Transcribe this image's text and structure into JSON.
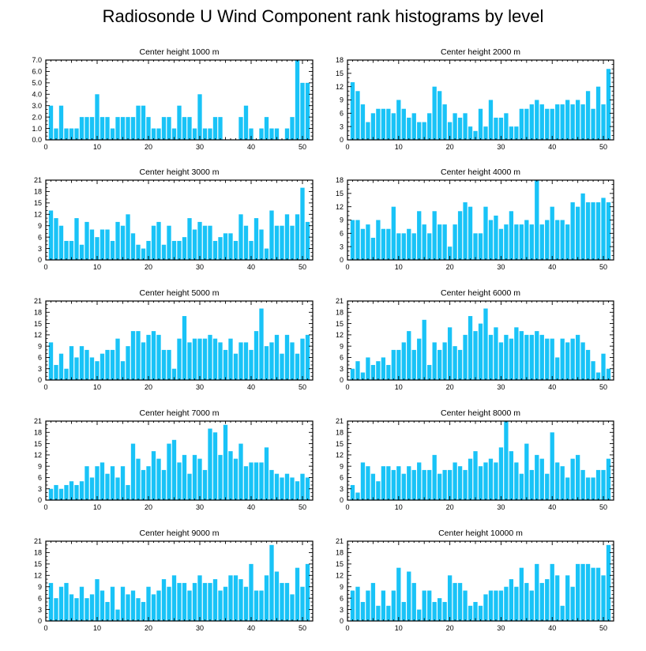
{
  "title": "Radiosonde U Wind Component rank histograms by level",
  "bar_color": "#19c3f7",
  "chart_data": [
    {
      "type": "bar",
      "title": "Center height 1000 m",
      "ylim": [
        0,
        7
      ],
      "yticks": [
        0,
        1,
        2,
        3,
        4,
        5,
        6,
        7
      ],
      "ytick_labels": [
        "0.0",
        "1.0",
        "2.0",
        "3.0",
        "4.0",
        "5.0",
        "6.0",
        "7.0"
      ],
      "xlim": [
        0,
        52
      ],
      "xticks": [
        0,
        10,
        20,
        30,
        40,
        50
      ],
      "x": [
        1,
        2,
        3,
        4,
        5,
        6,
        7,
        8,
        9,
        10,
        11,
        12,
        13,
        14,
        15,
        16,
        17,
        18,
        19,
        20,
        21,
        22,
        23,
        24,
        25,
        26,
        27,
        28,
        29,
        30,
        31,
        32,
        33,
        34,
        35,
        36,
        37,
        38,
        39,
        40,
        41,
        42,
        43,
        44,
        45,
        46,
        47,
        48,
        49,
        50,
        51
      ],
      "values": [
        3,
        1,
        3,
        1,
        1,
        1,
        2,
        2,
        2,
        4,
        2,
        2,
        1,
        2,
        2,
        2,
        2,
        3,
        3,
        2,
        1,
        1,
        2,
        2,
        1,
        3,
        2,
        2,
        1,
        4,
        1,
        1,
        2,
        2,
        0,
        0,
        0,
        2,
        3,
        1,
        0,
        1,
        2,
        1,
        1,
        0,
        1,
        2,
        7,
        5,
        5
      ]
    },
    {
      "type": "bar",
      "title": "Center height 2000 m",
      "ylim": [
        0,
        18
      ],
      "yticks": [
        0,
        3,
        6,
        9,
        12,
        15,
        18
      ],
      "ytick_labels": [
        "0",
        "3",
        "6",
        "9",
        "12",
        "15",
        "18"
      ],
      "xlim": [
        0,
        52
      ],
      "xticks": [
        0,
        10,
        20,
        30,
        40,
        50
      ],
      "x": [
        1,
        2,
        3,
        4,
        5,
        6,
        7,
        8,
        9,
        10,
        11,
        12,
        13,
        14,
        15,
        16,
        17,
        18,
        19,
        20,
        21,
        22,
        23,
        24,
        25,
        26,
        27,
        28,
        29,
        30,
        31,
        32,
        33,
        34,
        35,
        36,
        37,
        38,
        39,
        40,
        41,
        42,
        43,
        44,
        45,
        46,
        47,
        48,
        49,
        50,
        51
      ],
      "values": [
        13,
        11,
        8,
        4,
        6,
        7,
        7,
        7,
        6,
        9,
        7,
        5,
        6,
        4,
        4,
        6,
        12,
        11,
        8,
        4,
        6,
        5,
        6,
        3,
        2,
        7,
        3,
        9,
        5,
        5,
        6,
        3,
        3,
        7,
        7,
        8,
        9,
        8,
        7,
        7,
        8,
        8,
        9,
        8,
        9,
        8,
        11,
        7,
        12,
        8,
        16
      ]
    },
    {
      "type": "bar",
      "title": "Center height 3000 m",
      "ylim": [
        0,
        21
      ],
      "yticks": [
        0,
        3,
        6,
        9,
        12,
        15,
        18,
        21
      ],
      "ytick_labels": [
        "0",
        "3",
        "6",
        "9",
        "12",
        "15",
        "18",
        "21"
      ],
      "xlim": [
        0,
        52
      ],
      "xticks": [
        0,
        10,
        20,
        30,
        40,
        50
      ],
      "x": [
        1,
        2,
        3,
        4,
        5,
        6,
        7,
        8,
        9,
        10,
        11,
        12,
        13,
        14,
        15,
        16,
        17,
        18,
        19,
        20,
        21,
        22,
        23,
        24,
        25,
        26,
        27,
        28,
        29,
        30,
        31,
        32,
        33,
        34,
        35,
        36,
        37,
        38,
        39,
        40,
        41,
        42,
        43,
        44,
        45,
        46,
        47,
        48,
        49,
        50,
        51
      ],
      "values": [
        13,
        11,
        9,
        5,
        5,
        11,
        4,
        10,
        8,
        6,
        8,
        8,
        5,
        10,
        9,
        12,
        7,
        4,
        3,
        5,
        9,
        10,
        4,
        9,
        5,
        5,
        6,
        11,
        8,
        10,
        9,
        9,
        5,
        6,
        7,
        7,
        5,
        12,
        9,
        5,
        11,
        8,
        3,
        13,
        9,
        9,
        12,
        9,
        12,
        19,
        10
      ]
    },
    {
      "type": "bar",
      "title": "Center height 4000 m",
      "ylim": [
        0,
        18
      ],
      "yticks": [
        0,
        3,
        6,
        9,
        12,
        15,
        18
      ],
      "ytick_labels": [
        "0",
        "3",
        "6",
        "9",
        "12",
        "15",
        "18"
      ],
      "xlim": [
        0,
        52
      ],
      "xticks": [
        0,
        10,
        20,
        30,
        40,
        50
      ],
      "x": [
        1,
        2,
        3,
        4,
        5,
        6,
        7,
        8,
        9,
        10,
        11,
        12,
        13,
        14,
        15,
        16,
        17,
        18,
        19,
        20,
        21,
        22,
        23,
        24,
        25,
        26,
        27,
        28,
        29,
        30,
        31,
        32,
        33,
        34,
        35,
        36,
        37,
        38,
        39,
        40,
        41,
        42,
        43,
        44,
        45,
        46,
        47,
        48,
        49,
        50,
        51
      ],
      "values": [
        9,
        9,
        7,
        8,
        5,
        9,
        7,
        7,
        12,
        6,
        6,
        7,
        6,
        11,
        8,
        6,
        11,
        8,
        8,
        3,
        8,
        11,
        13,
        12,
        6,
        6,
        12,
        9,
        10,
        7,
        8,
        11,
        8,
        8,
        9,
        8,
        18,
        8,
        9,
        12,
        9,
        9,
        8,
        13,
        12,
        15,
        13,
        13,
        13,
        14,
        13
      ]
    },
    {
      "type": "bar",
      "title": "Center height 5000 m",
      "ylim": [
        0,
        21
      ],
      "yticks": [
        0,
        3,
        6,
        9,
        12,
        15,
        18,
        21
      ],
      "ytick_labels": [
        "0",
        "3",
        "6",
        "9",
        "12",
        "15",
        "18",
        "21"
      ],
      "xlim": [
        0,
        52
      ],
      "xticks": [
        0,
        10,
        20,
        30,
        40,
        50
      ],
      "x": [
        1,
        2,
        3,
        4,
        5,
        6,
        7,
        8,
        9,
        10,
        11,
        12,
        13,
        14,
        15,
        16,
        17,
        18,
        19,
        20,
        21,
        22,
        23,
        24,
        25,
        26,
        27,
        28,
        29,
        30,
        31,
        32,
        33,
        34,
        35,
        36,
        37,
        38,
        39,
        40,
        41,
        42,
        43,
        44,
        45,
        46,
        47,
        48,
        49,
        50,
        51
      ],
      "values": [
        10,
        4,
        7,
        3,
        9,
        6,
        9,
        8,
        6,
        5,
        7,
        8,
        8,
        11,
        5,
        9,
        13,
        13,
        10,
        12,
        13,
        12,
        8,
        8,
        3,
        11,
        17,
        10,
        11,
        11,
        11,
        12,
        11,
        10,
        8,
        11,
        7,
        10,
        10,
        8,
        13,
        19,
        9,
        10,
        12,
        7,
        12,
        10,
        7,
        11,
        12
      ]
    },
    {
      "type": "bar",
      "title": "Center height 6000 m",
      "ylim": [
        0,
        21
      ],
      "yticks": [
        0,
        3,
        6,
        9,
        12,
        15,
        18,
        21
      ],
      "ytick_labels": [
        "0",
        "3",
        "6",
        "9",
        "12",
        "15",
        "18",
        "21"
      ],
      "xlim": [
        0,
        52
      ],
      "xticks": [
        0,
        10,
        20,
        30,
        40,
        50
      ],
      "x": [
        1,
        2,
        3,
        4,
        5,
        6,
        7,
        8,
        9,
        10,
        11,
        12,
        13,
        14,
        15,
        16,
        17,
        18,
        19,
        20,
        21,
        22,
        23,
        24,
        25,
        26,
        27,
        28,
        29,
        30,
        31,
        32,
        33,
        34,
        35,
        36,
        37,
        38,
        39,
        40,
        41,
        42,
        43,
        44,
        45,
        46,
        47,
        48,
        49,
        50,
        51
      ],
      "values": [
        3,
        5,
        2,
        6,
        4,
        5,
        6,
        4,
        8,
        8,
        10,
        13,
        8,
        11,
        16,
        4,
        10,
        8,
        10,
        14,
        9,
        8,
        12,
        17,
        13,
        15,
        19,
        12,
        14,
        10,
        12,
        11,
        14,
        13,
        12,
        12,
        13,
        12,
        11,
        11,
        6,
        11,
        10,
        11,
        12,
        10,
        8,
        5,
        2,
        7,
        3
      ]
    },
    {
      "type": "bar",
      "title": "Center height 7000 m",
      "ylim": [
        0,
        21
      ],
      "yticks": [
        0,
        3,
        6,
        9,
        12,
        15,
        18,
        21
      ],
      "ytick_labels": [
        "0",
        "3",
        "6",
        "9",
        "12",
        "15",
        "18",
        "21"
      ],
      "xlim": [
        0,
        52
      ],
      "xticks": [
        0,
        10,
        20,
        30,
        40,
        50
      ],
      "x": [
        1,
        2,
        3,
        4,
        5,
        6,
        7,
        8,
        9,
        10,
        11,
        12,
        13,
        14,
        15,
        16,
        17,
        18,
        19,
        20,
        21,
        22,
        23,
        24,
        25,
        26,
        27,
        28,
        29,
        30,
        31,
        32,
        33,
        34,
        35,
        36,
        37,
        38,
        39,
        40,
        41,
        42,
        43,
        44,
        45,
        46,
        47,
        48,
        49,
        50,
        51
      ],
      "values": [
        3,
        4,
        3,
        4,
        5,
        4,
        5,
        9,
        6,
        9,
        10,
        7,
        9,
        6,
        9,
        4,
        15,
        11,
        8,
        9,
        13,
        11,
        8,
        15,
        16,
        10,
        12,
        7,
        12,
        11,
        8,
        19,
        18,
        12,
        20,
        13,
        11,
        15,
        9,
        10,
        10,
        10,
        14,
        8,
        7,
        6,
        7,
        6,
        5,
        7,
        6
      ]
    },
    {
      "type": "bar",
      "title": "Center height 8000 m",
      "ylim": [
        0,
        21
      ],
      "yticks": [
        0,
        3,
        6,
        9,
        12,
        15,
        18,
        21
      ],
      "ytick_labels": [
        "0",
        "3",
        "6",
        "9",
        "12",
        "15",
        "18",
        "21"
      ],
      "xlim": [
        0,
        52
      ],
      "xticks": [
        0,
        10,
        20,
        30,
        40,
        50
      ],
      "x": [
        1,
        2,
        3,
        4,
        5,
        6,
        7,
        8,
        9,
        10,
        11,
        12,
        13,
        14,
        15,
        16,
        17,
        18,
        19,
        20,
        21,
        22,
        23,
        24,
        25,
        26,
        27,
        28,
        29,
        30,
        31,
        32,
        33,
        34,
        35,
        36,
        37,
        38,
        39,
        40,
        41,
        42,
        43,
        44,
        45,
        46,
        47,
        48,
        49,
        50,
        51
      ],
      "values": [
        4,
        2,
        10,
        9,
        7,
        5,
        9,
        9,
        8,
        9,
        7,
        9,
        8,
        10,
        8,
        8,
        12,
        7,
        8,
        8,
        10,
        9,
        8,
        11,
        13,
        9,
        10,
        11,
        10,
        14,
        21,
        13,
        10,
        7,
        15,
        8,
        12,
        11,
        7,
        18,
        10,
        9,
        6,
        11,
        12,
        8,
        6,
        6,
        8,
        8,
        11
      ]
    },
    {
      "type": "bar",
      "title": "Center height 9000 m",
      "ylim": [
        0,
        21
      ],
      "yticks": [
        0,
        3,
        6,
        9,
        12,
        15,
        18,
        21
      ],
      "ytick_labels": [
        "0",
        "3",
        "6",
        "9",
        "12",
        "15",
        "18",
        "21"
      ],
      "xlim": [
        0,
        52
      ],
      "xticks": [
        0,
        10,
        20,
        30,
        40,
        50
      ],
      "x": [
        1,
        2,
        3,
        4,
        5,
        6,
        7,
        8,
        9,
        10,
        11,
        12,
        13,
        14,
        15,
        16,
        17,
        18,
        19,
        20,
        21,
        22,
        23,
        24,
        25,
        26,
        27,
        28,
        29,
        30,
        31,
        32,
        33,
        34,
        35,
        36,
        37,
        38,
        39,
        40,
        41,
        42,
        43,
        44,
        45,
        46,
        47,
        48,
        49,
        50,
        51
      ],
      "values": [
        10,
        6,
        9,
        10,
        7,
        6,
        9,
        6,
        7,
        11,
        8,
        5,
        9,
        3,
        9,
        7,
        8,
        6,
        5,
        9,
        7,
        8,
        11,
        9,
        12,
        10,
        10,
        8,
        10,
        12,
        10,
        10,
        11,
        8,
        9,
        12,
        12,
        11,
        9,
        15,
        8,
        8,
        12,
        20,
        13,
        10,
        10,
        7,
        14,
        9,
        15
      ]
    },
    {
      "type": "bar",
      "title": "Center height 10000 m",
      "ylim": [
        0,
        21
      ],
      "yticks": [
        0,
        3,
        6,
        9,
        12,
        15,
        18,
        21
      ],
      "ytick_labels": [
        "0",
        "3",
        "6",
        "9",
        "12",
        "15",
        "18",
        "21"
      ],
      "xlim": [
        0,
        52
      ],
      "xticks": [
        0,
        10,
        20,
        30,
        40,
        50
      ],
      "x": [
        1,
        2,
        3,
        4,
        5,
        6,
        7,
        8,
        9,
        10,
        11,
        12,
        13,
        14,
        15,
        16,
        17,
        18,
        19,
        20,
        21,
        22,
        23,
        24,
        25,
        26,
        27,
        28,
        29,
        30,
        31,
        32,
        33,
        34,
        35,
        36,
        37,
        38,
        39,
        40,
        41,
        42,
        43,
        44,
        45,
        46,
        47,
        48,
        49,
        50,
        51
      ],
      "values": [
        8,
        9,
        5,
        8,
        10,
        4,
        8,
        4,
        8,
        14,
        5,
        13,
        10,
        3,
        8,
        8,
        5,
        6,
        5,
        12,
        10,
        10,
        8,
        4,
        5,
        4,
        7,
        8,
        8,
        8,
        9,
        11,
        9,
        14,
        10,
        8,
        15,
        10,
        11,
        15,
        12,
        4,
        12,
        9,
        15,
        15,
        15,
        14,
        14,
        12,
        20
      ]
    }
  ]
}
